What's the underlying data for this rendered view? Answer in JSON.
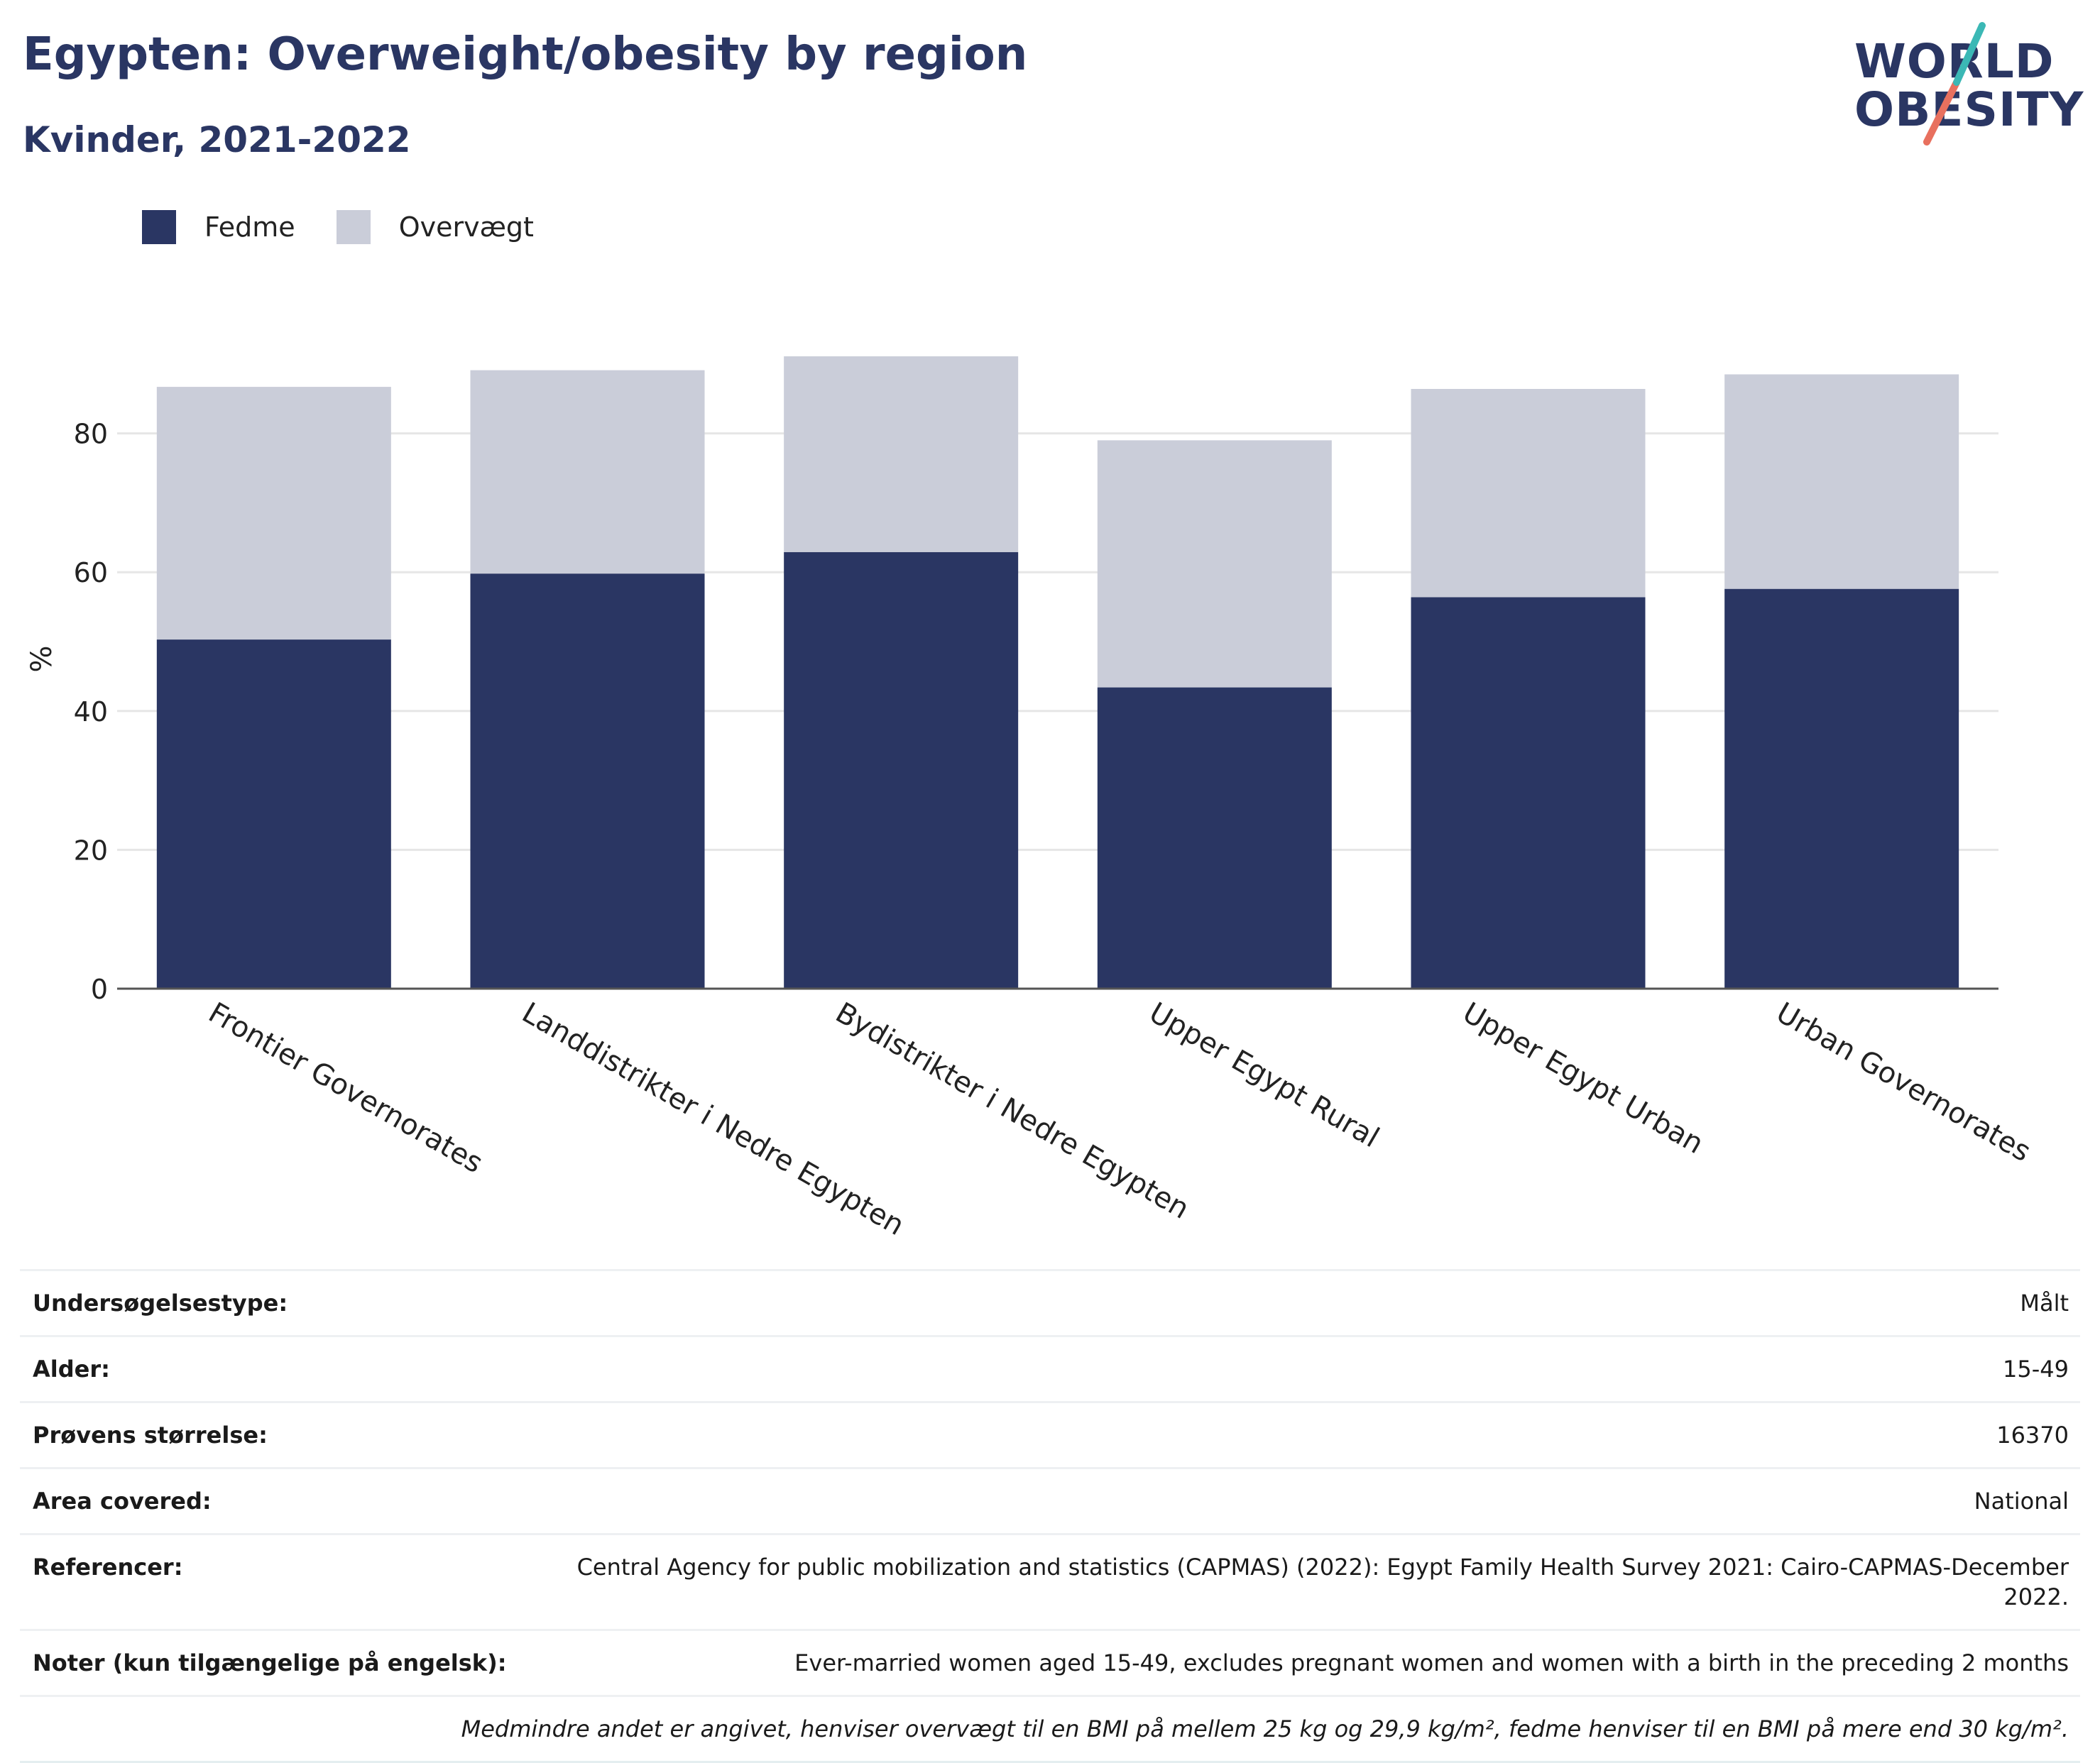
{
  "header": {
    "title": "Egypten: Overweight/obesity by region",
    "subtitle": "Kvinder, 2021-2022"
  },
  "logo": {
    "line1": "WORLD",
    "line2": "OBESITY",
    "colors": {
      "text": "#2a3663",
      "slash_teal": "#3bb8b5",
      "slash_coral": "#e8705e"
    }
  },
  "legend": [
    {
      "label": "Fedme",
      "color": "#2a3663"
    },
    {
      "label": "Overvægt",
      "color": "#cacdd9"
    }
  ],
  "chart_data": {
    "type": "bar",
    "stacked": true,
    "categories": [
      "Frontier Governorates",
      "Landdistrikter i Nedre Egypten",
      "Bydistrikter i Nedre Egypten",
      "Upper Egypt Rural",
      "Upper Egypt Urban",
      "Urban Governorates"
    ],
    "series": [
      {
        "name": "Fedme",
        "color": "#2a3663",
        "values": [
          50.3,
          59.8,
          62.9,
          43.4,
          56.4,
          57.6
        ]
      },
      {
        "name": "Overvægt",
        "color": "#cacdd9",
        "values": [
          36.4,
          29.3,
          28.2,
          35.6,
          30.0,
          30.9
        ]
      }
    ],
    "ylabel": "%",
    "xlabel": "",
    "yticks": [
      0,
      20,
      40,
      60,
      80
    ],
    "ylim": [
      0,
      95
    ],
    "grid": true,
    "legend_position": "top-left"
  },
  "info": {
    "rows": [
      {
        "label": "Undersøgelsestype:",
        "value": "Målt"
      },
      {
        "label": "Alder:",
        "value": "15-49"
      },
      {
        "label": "Prøvens størrelse:",
        "value": "16370"
      },
      {
        "label": "Area covered:",
        "value": "National"
      },
      {
        "label": "Referencer:",
        "value": "Central Agency for public mobilization and statistics (CAPMAS) (2022): Egypt Family Health Survey 2021: Cairo-CAPMAS-December 2022."
      },
      {
        "label": "Noter (kun tilgængelige på engelsk):",
        "value": "Ever-married women aged 15-49, excludes pregnant women and women with a birth in the preceding 2 months"
      }
    ],
    "footnote": "Medmindre andet er angivet, henviser overvægt til en BMI på mellem 25 kg og 29,9 kg/m², fedme henviser til en BMI på mere end 30 kg/m²."
  }
}
